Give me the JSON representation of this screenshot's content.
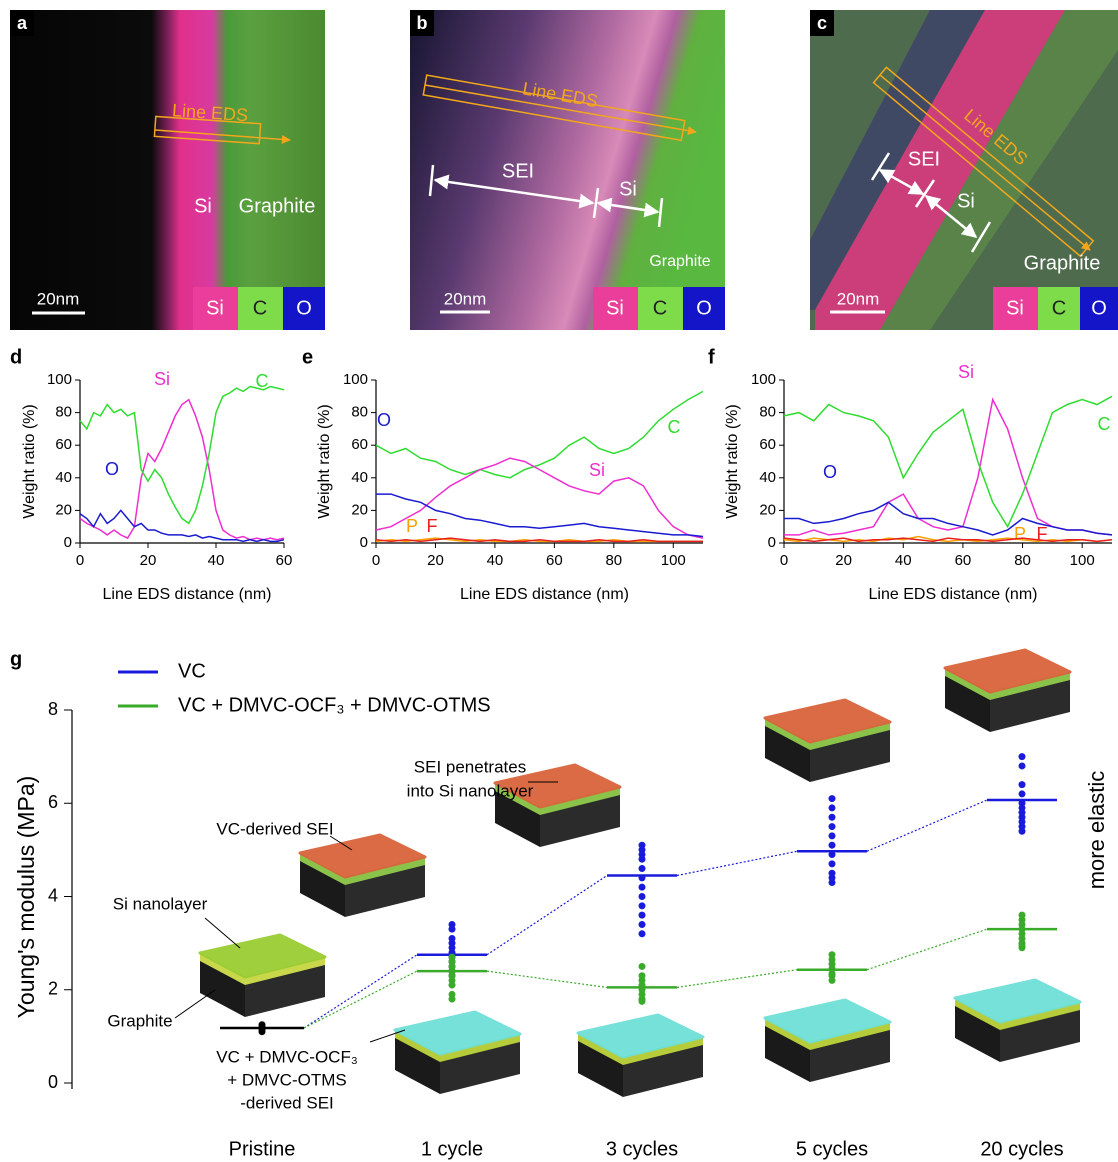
{
  "images": [
    {
      "panel": "a",
      "line_label": "Line EDS",
      "labels": [
        "Si",
        "Graphite"
      ],
      "scale_bar": "20nm",
      "legend": [
        "Si",
        "C",
        "O"
      ]
    },
    {
      "panel": "b",
      "line_label": "Line EDS",
      "labels": [
        "SEI",
        "Si",
        "Graphite"
      ],
      "scale_bar": "20nm",
      "legend": [
        "Si",
        "C",
        "O"
      ]
    },
    {
      "panel": "c",
      "line_label": "Line EDS",
      "labels": [
        "SEI",
        "Si",
        "Graphite"
      ],
      "scale_bar": "20nm",
      "legend": [
        "Si",
        "C",
        "O"
      ]
    }
  ],
  "chart_data": [
    {
      "type": "line",
      "panel": "d",
      "xlabel": "Line EDS distance (nm)",
      "ylabel": "Weight ratio (%)",
      "xlim": [
        0,
        60
      ],
      "xticks": [
        0,
        20,
        40,
        60
      ],
      "ylim": [
        0,
        100
      ],
      "yticks": [
        0,
        20,
        40,
        60,
        80,
        100
      ],
      "x": [
        0,
        2,
        4,
        6,
        8,
        10,
        12,
        14,
        16,
        18,
        20,
        22,
        24,
        26,
        28,
        30,
        32,
        34,
        36,
        38,
        40,
        42,
        44,
        46,
        48,
        50,
        52,
        54,
        56,
        58,
        60
      ],
      "series": [
        {
          "name": "Si",
          "color": "#ee2ed0",
          "values": [
            15,
            12,
            10,
            8,
            5,
            8,
            5,
            3,
            10,
            40,
            55,
            50,
            58,
            68,
            78,
            85,
            88,
            78,
            65,
            45,
            20,
            8,
            5,
            3,
            4,
            2,
            3,
            2,
            3,
            2,
            3
          ]
        },
        {
          "name": "C",
          "color": "#2fdc2f",
          "values": [
            75,
            70,
            80,
            78,
            85,
            80,
            82,
            78,
            80,
            45,
            38,
            45,
            40,
            30,
            22,
            15,
            12,
            20,
            35,
            55,
            80,
            90,
            92,
            95,
            93,
            96,
            95,
            94,
            96,
            95,
            94
          ]
        },
        {
          "name": "O",
          "color": "#1a1ad0",
          "values": [
            18,
            15,
            10,
            18,
            12,
            15,
            20,
            15,
            10,
            12,
            8,
            8,
            6,
            5,
            5,
            5,
            4,
            5,
            3,
            4,
            3,
            2,
            2,
            2,
            1,
            2,
            1,
            2,
            1,
            1,
            2
          ]
        }
      ]
    },
    {
      "type": "line",
      "panel": "e",
      "xlabel": "Line EDS distance (nm)",
      "ylabel": "Weight ratio (%)",
      "xlim": [
        0,
        110
      ],
      "xticks": [
        0,
        20,
        40,
        60,
        80,
        100
      ],
      "ylim": [
        0,
        100
      ],
      "yticks": [
        0,
        20,
        40,
        60,
        80,
        100
      ],
      "x": [
        0,
        5,
        10,
        15,
        20,
        25,
        30,
        35,
        40,
        45,
        50,
        55,
        60,
        65,
        70,
        75,
        80,
        85,
        90,
        95,
        100,
        105,
        110
      ],
      "series": [
        {
          "name": "C",
          "color": "#2fdc2f",
          "values": [
            60,
            55,
            58,
            52,
            50,
            45,
            42,
            45,
            42,
            40,
            45,
            48,
            52,
            60,
            65,
            58,
            55,
            58,
            65,
            75,
            82,
            88,
            93
          ]
        },
        {
          "name": "Si",
          "color": "#ee2ed0",
          "values": [
            8,
            10,
            15,
            20,
            28,
            35,
            40,
            45,
            48,
            52,
            50,
            45,
            40,
            35,
            32,
            30,
            38,
            40,
            35,
            20,
            10,
            5,
            3
          ]
        },
        {
          "name": "O",
          "color": "#1a1ad0",
          "values": [
            30,
            30,
            27,
            25,
            20,
            18,
            15,
            14,
            12,
            10,
            10,
            9,
            10,
            11,
            12,
            10,
            9,
            8,
            7,
            6,
            5,
            5,
            4
          ]
        },
        {
          "name": "P",
          "color": "#f5a000",
          "values": [
            1,
            2,
            1,
            2,
            3,
            2,
            1,
            2,
            1,
            1,
            2,
            1,
            1,
            2,
            1,
            1,
            2,
            1,
            1,
            1,
            1,
            1,
            1
          ]
        },
        {
          "name": "F",
          "color": "#e82020",
          "values": [
            2,
            1,
            2,
            1,
            2,
            3,
            2,
            1,
            2,
            1,
            1,
            2,
            1,
            1,
            1,
            2,
            1,
            1,
            2,
            1,
            1,
            1,
            1
          ]
        }
      ]
    },
    {
      "type": "line",
      "panel": "f",
      "xlabel": "Line EDS distance (nm)",
      "ylabel": "Weight ratio (%)",
      "xlim": [
        0,
        110
      ],
      "xticks": [
        0,
        20,
        40,
        60,
        80,
        100
      ],
      "ylim": [
        0,
        100
      ],
      "yticks": [
        0,
        20,
        40,
        60,
        80,
        100
      ],
      "x": [
        0,
        5,
        10,
        15,
        20,
        25,
        30,
        35,
        40,
        45,
        50,
        55,
        60,
        65,
        70,
        75,
        80,
        85,
        90,
        95,
        100,
        105,
        110
      ],
      "series": [
        {
          "name": "Si",
          "color": "#ee2ed0",
          "values": [
            5,
            5,
            8,
            5,
            6,
            8,
            10,
            25,
            30,
            15,
            10,
            8,
            10,
            40,
            88,
            70,
            40,
            15,
            10,
            8,
            8,
            6,
            5
          ]
        },
        {
          "name": "C",
          "color": "#2fdc2f",
          "values": [
            78,
            80,
            75,
            85,
            80,
            78,
            75,
            65,
            40,
            55,
            68,
            75,
            82,
            50,
            25,
            10,
            30,
            55,
            80,
            85,
            88,
            85,
            90
          ]
        },
        {
          "name": "O",
          "color": "#1a1ad0",
          "values": [
            15,
            15,
            12,
            13,
            15,
            18,
            20,
            25,
            18,
            15,
            15,
            12,
            10,
            8,
            5,
            8,
            15,
            12,
            10,
            8,
            8,
            6,
            5
          ]
        },
        {
          "name": "P",
          "color": "#f5a000",
          "values": [
            2,
            1,
            3,
            2,
            1,
            2,
            1,
            3,
            2,
            4,
            2,
            1,
            2,
            1,
            2,
            3,
            2,
            1,
            2,
            1,
            2,
            1,
            2
          ]
        },
        {
          "name": "F",
          "color": "#e82020",
          "values": [
            3,
            2,
            1,
            2,
            3,
            1,
            2,
            2,
            3,
            2,
            1,
            3,
            2,
            2,
            1,
            2,
            3,
            2,
            1,
            2,
            2,
            1,
            2
          ]
        }
      ]
    },
    {
      "type": "scatter",
      "panel": "g",
      "ylabel": "Young's modulus (MPa)",
      "side_label": "more elastic",
      "ylim": [
        0,
        8
      ],
      "yticks": [
        0,
        2,
        4,
        6,
        8
      ],
      "categories": [
        "Pristine",
        "1 cycle",
        "3 cycles",
        "5 cycles",
        "20 cycles"
      ],
      "pristine": {
        "color": "#000000",
        "value": 1.18,
        "points": [
          1.25,
          1.2,
          1.15,
          1.1
        ]
      },
      "series": [
        {
          "name": "VC",
          "color": "#1a1adc",
          "values": [
            null,
            2.75,
            4.45,
            4.97,
            6.07
          ],
          "points": [
            null,
            [
              3.4,
              3.3,
              3.1,
              3.0,
              2.9,
              2.8,
              2.7,
              2.6,
              2.5,
              2.4,
              2.3
            ],
            [
              5.1,
              5.0,
              4.9,
              4.8,
              4.6,
              4.4,
              4.2,
              4.0,
              3.8,
              3.6,
              3.4,
              3.2
            ],
            [
              6.1,
              5.9,
              5.7,
              5.5,
              5.3,
              5.1,
              4.9,
              4.7,
              4.5,
              4.4,
              4.3
            ],
            [
              7.0,
              6.8,
              6.4,
              6.2,
              6.0,
              5.9,
              5.8,
              5.7,
              5.6,
              5.5,
              5.4
            ]
          ]
        },
        {
          "name": "VC + DMVC-OCF₃ + DMVC-OTMS",
          "color": "#3aaa2a",
          "values": [
            null,
            2.4,
            2.05,
            2.43,
            3.3
          ],
          "points": [
            null,
            [
              2.7,
              2.6,
              2.5,
              2.4,
              2.3,
              2.2,
              2.1,
              1.9,
              1.8
            ],
            [
              2.5,
              2.3,
              2.2,
              2.1,
              2.0,
              1.9,
              1.8,
              1.75
            ],
            [
              2.75,
              2.65,
              2.55,
              2.45,
              2.35,
              2.3,
              2.2
            ],
            [
              3.6,
              3.5,
              3.4,
              3.3,
              3.2,
              3.1,
              3.0,
              2.95,
              2.9
            ]
          ]
        }
      ],
      "annotations": {
        "si_nanolayer": "Si nanolayer",
        "graphite": "Graphite",
        "vc_sei": "VC-derived SEI",
        "penetrates": [
          "SEI penetrates",
          "into Si nanolayer"
        ],
        "additive_sei": [
          "VC + DMVC-OCF₃",
          "+ DMVC-OTMS",
          "-derived SEI"
        ]
      }
    }
  ]
}
